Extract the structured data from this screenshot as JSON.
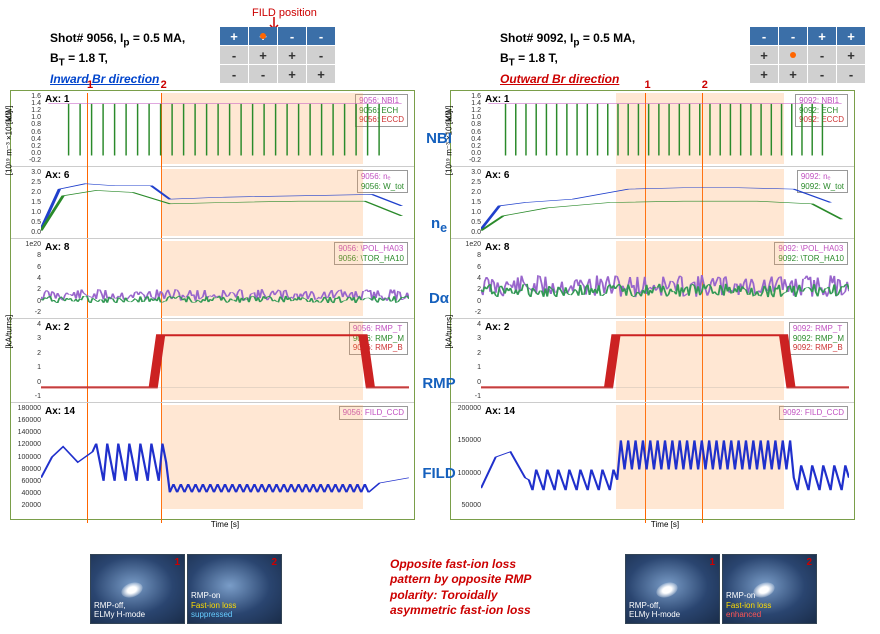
{
  "left": {
    "shot": "Shot# 9056, I",
    "shot_sub": "p",
    "shot_val": " = 0.5 MA,",
    "bt": "B",
    "bt_sub": "T",
    "bt_val": " = 1.8 T,",
    "br_dir": "Inward Br direction",
    "polarity": [
      [
        "+",
        "+",
        "-",
        "-"
      ],
      [
        "-",
        "+",
        "+",
        "-"
      ],
      [
        "-",
        "-",
        "+",
        "+"
      ]
    ],
    "fild_dot": {
      "row": 0,
      "col": 1
    },
    "markers": {
      "t1": 2.0,
      "t2": 3.6,
      "t1_label": "1",
      "t2_label": "2"
    },
    "highlight": {
      "start": 3.6,
      "end": 8.0
    },
    "xrange": [
      1,
      9
    ],
    "xlabel": "Time [s]",
    "rows": {
      "nbi": {
        "ax": "Ax: 1",
        "yticks": [
          "1.6",
          "1.4",
          "1.2",
          "1.0",
          "0.8",
          "0.6",
          "0.4",
          "0.2",
          "0.0",
          "-0.2"
        ],
        "yunit": "[MW]",
        "legend": [
          "9056: NBI1",
          "9056: ECH",
          "9056: ECCD"
        ]
      },
      "ne": {
        "ax": "Ax: 6",
        "yticks": [
          "3.0",
          "2.5",
          "2.0",
          "1.5",
          "1.0",
          "0.5",
          "0.0"
        ],
        "yunit": "[10¹⁹ m⁻³ ×10⁵ kJ]",
        "legend": [
          "9056: nₑ",
          "9056: W_tot"
        ]
      },
      "da": {
        "ax": "Ax: 8",
        "yticks": [
          "1e20",
          "8",
          "6",
          "4",
          "2",
          "0",
          "-2"
        ],
        "legend": [
          "9056: \\POL_HA03",
          "9056: \\TOR_HA10"
        ]
      },
      "rmp": {
        "ax": "Ax: 2",
        "yticks": [
          "4",
          "3",
          "2",
          "1",
          "0",
          "-1"
        ],
        "yunit": "[kA/turns]",
        "legend": [
          "9056: RMP_T",
          "9056: RMP_M",
          "9056: RMP_B"
        ]
      },
      "fild": {
        "ax": "Ax: 14",
        "yticks": [
          "180000",
          "160000",
          "140000",
          "120000",
          "100000",
          "80000",
          "60000",
          "40000",
          "20000"
        ],
        "legend": [
          "9056: FILD_CCD"
        ]
      }
    },
    "thumbs": [
      {
        "num": "1",
        "l1": "RMP-off,",
        "l2": "ELMy H-mode",
        "blob": true
      },
      {
        "num": "2",
        "l1": "RMP-on",
        "l2": "Fast-ion loss",
        "l3": "suppressed",
        "l2_class": "yellow",
        "l3_class": "cyan",
        "blob": false
      }
    ]
  },
  "right": {
    "shot": "Shot# 9092, I",
    "shot_sub": "p",
    "shot_val": " = 0.5 MA,",
    "bt": "B",
    "bt_sub": "T",
    "bt_val": " = 1.8 T,",
    "br_dir": "Outward Br direction",
    "polarity": [
      [
        "-",
        "-",
        "+",
        "+"
      ],
      [
        "+",
        "-",
        "-",
        "+"
      ],
      [
        "+",
        "+",
        "-",
        "-"
      ]
    ],
    "fild_dot": {
      "row": 1,
      "col": 1
    },
    "markers": {
      "t1": 5.0,
      "t2": 6.4,
      "t1_label": "1",
      "t2_label": "2"
    },
    "highlight": {
      "start": 4.3,
      "end": 8.4
    },
    "xrange": [
      1,
      10
    ],
    "xlabel": "Time [s]",
    "rows": {
      "nbi": {
        "ax": "Ax: 1",
        "yticks": [
          "1.6",
          "1.4",
          "1.2",
          "1.0",
          "0.8",
          "0.6",
          "0.4",
          "0.2",
          "0.0",
          "-0.2"
        ],
        "yunit": "[MW]",
        "legend": [
          "9092: NBI1",
          "9092: ECH",
          "9092: ECCD"
        ]
      },
      "ne": {
        "ax": "Ax: 6",
        "yticks": [
          "3.0",
          "2.5",
          "2.0",
          "1.5",
          "1.0",
          "0.5",
          "0.0"
        ],
        "yunit": "[10¹⁹ m⁻³ ×10⁵ kJ]",
        "legend": [
          "9092: nₑ",
          "9092: W_tot"
        ]
      },
      "da": {
        "ax": "Ax: 8",
        "yticks": [
          "1e20",
          "8",
          "6",
          "4",
          "2",
          "0",
          "-2"
        ],
        "legend": [
          "9092: \\POL_HA03",
          "9092: \\TOR_HA10"
        ]
      },
      "rmp": {
        "ax": "Ax: 2",
        "yticks": [
          "4",
          "3",
          "2",
          "1",
          "0",
          "-1"
        ],
        "yunit": "[kA/turns]",
        "legend": [
          "9092: RMP_T",
          "9092: RMP_M",
          "9092: RMP_B"
        ]
      },
      "fild": {
        "ax": "Ax: 14",
        "yticks": [
          "200000",
          "150000",
          "100000",
          "50000"
        ],
        "legend": [
          "9092: FILD_CCD"
        ]
      }
    },
    "thumbs": [
      {
        "num": "1",
        "l1": "RMP-off,",
        "l2": "ELMy H-mode",
        "blob": true
      },
      {
        "num": "2",
        "l1": "RMP-on",
        "l2": "Fast-ion loss",
        "l3": "enhanced",
        "l2_class": "yellow",
        "l3_class": "red-txt",
        "blob": true
      }
    ]
  },
  "fild_pos_label": "FILD position",
  "channel_labels": [
    "NBI",
    "n",
    "Dα",
    "RMP",
    "FILD"
  ],
  "ne_sub": "e",
  "center_text": "Opposite fast-ion loss pattern by opposite RMP polarity: Toroidally asymmetric fast-ion loss",
  "channel_tops": [
    130,
    215,
    290,
    375,
    465
  ],
  "colors": {
    "nbi_line": "#2a8a2a",
    "nbi_top": "#c050c0",
    "ne_blue": "#2040cc",
    "ne_green": "#2a8a2a",
    "da_mag": "#9966cc",
    "da_grn": "#339955",
    "rmp": "#cc2222",
    "fild": "#2030cc",
    "highlight": "rgba(255,160,80,0.25)",
    "marker": "#ff6600"
  }
}
